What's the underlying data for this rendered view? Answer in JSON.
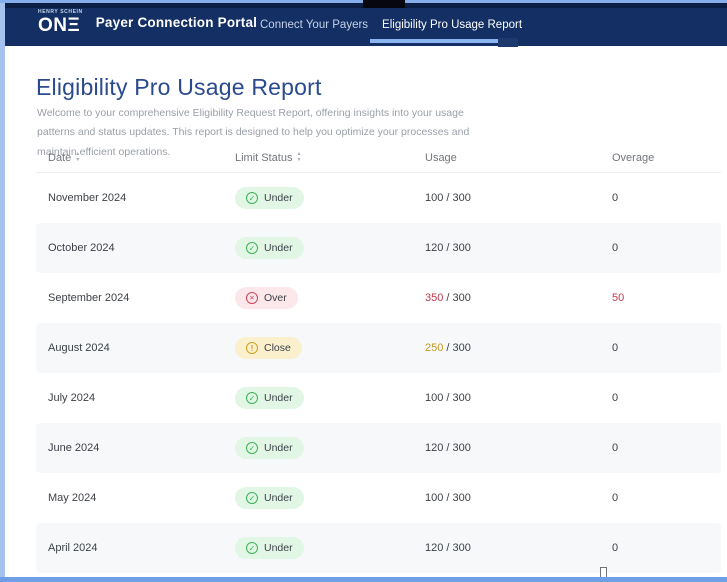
{
  "brand": {
    "logo_top_text": "HENRY SCHEIN",
    "logo_main_text": "ONΞ",
    "portal_title": "Payer Connection Portal"
  },
  "nav": {
    "items": [
      {
        "label": "Connect Your Payers",
        "active": false
      },
      {
        "label": "Eligibility Pro Usage Report",
        "active": true
      }
    ]
  },
  "page": {
    "title": "Eligibility Pro Usage Report",
    "description": "Welcome to your comprehensive Eligibility Request Report, offering insights into your usage patterns and status updates. This report is designed to help you optimize your processes and maintain efficient operations."
  },
  "table": {
    "columns": [
      {
        "label": "Date",
        "sortable": true
      },
      {
        "label": "Limit Status",
        "sortable": true
      },
      {
        "label": "Usage",
        "sortable": false
      },
      {
        "label": "Overage",
        "sortable": false
      }
    ],
    "usage_separator": " / ",
    "rows": [
      {
        "date": "November 2024",
        "status": "Under",
        "icon": "check-circle-icon",
        "used": "100",
        "limit": "300",
        "tone": "ok",
        "overage": "0",
        "overage_tone": "ok"
      },
      {
        "date": "October 2024",
        "status": "Under",
        "icon": "check-circle-icon",
        "used": "120",
        "limit": "300",
        "tone": "ok",
        "overage": "0",
        "overage_tone": "ok"
      },
      {
        "date": "September 2024",
        "status": "Over",
        "icon": "x-circle-icon",
        "used": "350",
        "limit": "300",
        "tone": "over",
        "overage": "50",
        "overage_tone": "over"
      },
      {
        "date": "August 2024",
        "status": "Close",
        "icon": "alert-circle-icon",
        "used": "250",
        "limit": "300",
        "tone": "close",
        "overage": "0",
        "overage_tone": "ok"
      },
      {
        "date": "July 2024",
        "status": "Under",
        "icon": "check-circle-icon",
        "used": "100",
        "limit": "300",
        "tone": "ok",
        "overage": "0",
        "overage_tone": "ok"
      },
      {
        "date": "June 2024",
        "status": "Under",
        "icon": "check-circle-icon",
        "used": "120",
        "limit": "300",
        "tone": "ok",
        "overage": "0",
        "overage_tone": "ok"
      },
      {
        "date": "May 2024",
        "status": "Under",
        "icon": "check-circle-icon",
        "used": "100",
        "limit": "300",
        "tone": "ok",
        "overage": "0",
        "overage_tone": "ok"
      },
      {
        "date": "April 2024",
        "status": "Under",
        "icon": "check-circle-icon",
        "used": "120",
        "limit": "300",
        "tone": "ok",
        "overage": "0",
        "overage_tone": "ok"
      }
    ]
  },
  "colors": {
    "header_navy": "#132f63",
    "active_tab_underline": "#8ab5ef",
    "heading_blue": "#2a4a8f",
    "status_under_bg": "#e2f6e6",
    "status_under_icon": "#3cb257",
    "status_over_bg": "#fce7eb",
    "status_over_icon": "#cf4358",
    "status_close_bg": "#fbf0cd",
    "status_close_icon": "#cf9f1a",
    "over_text": "#c53a4e",
    "close_text": "#c79a21",
    "zebra_row_bg": "#f6f8fa",
    "frame_blue": "#6f9de6"
  }
}
